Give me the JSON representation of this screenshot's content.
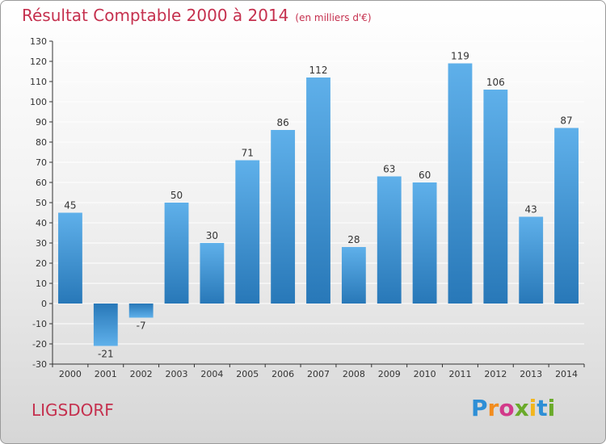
{
  "header": {
    "title": "Résultat Comptable 2000 à 2014",
    "unit": "(en milliers d'€)"
  },
  "footer": {
    "place": "LIGSDORF",
    "logo_text": "Proxiti",
    "logo_colors": [
      "#2e8fd6",
      "#f28c1e",
      "#d23a8a",
      "#6aaa2a",
      "#f2b61e",
      "#2e8fd6",
      "#6aaa2a"
    ]
  },
  "colors": {
    "bar_top": "#5fb0ea",
    "bar_bottom": "#2878b8",
    "bar_neg_top": "#2878b8",
    "bar_neg_bottom": "#5fb0ea",
    "grid": "#ffffff",
    "axis": "#333333",
    "accent": "#c5304e"
  },
  "chart_data": {
    "type": "bar",
    "title": "Résultat Comptable 2000 à 2014",
    "xlabel": "",
    "ylabel": "",
    "categories": [
      "2000",
      "2001",
      "2002",
      "2003",
      "2004",
      "2005",
      "2006",
      "2007",
      "2008",
      "2009",
      "2010",
      "2011",
      "2012",
      "2013",
      "2014"
    ],
    "values": [
      45,
      -21,
      -7,
      50,
      30,
      71,
      86,
      112,
      28,
      63,
      60,
      119,
      106,
      43,
      87
    ],
    "ylim": [
      -30,
      130
    ],
    "yticks": [
      -30,
      -20,
      -10,
      0,
      10,
      20,
      30,
      40,
      50,
      60,
      70,
      80,
      90,
      100,
      110,
      120,
      130
    ],
    "grid": true,
    "legend": "none"
  }
}
